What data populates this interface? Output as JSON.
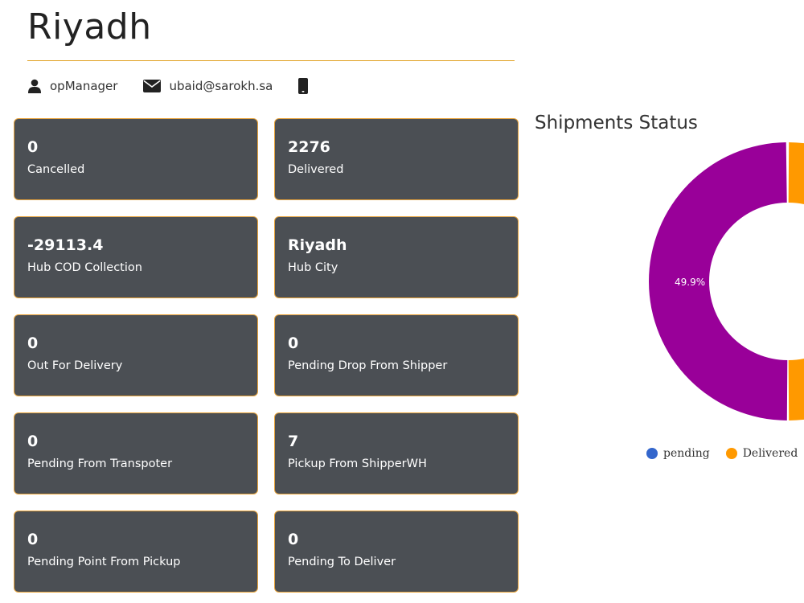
{
  "header": {
    "title": "Riyadh",
    "user": {
      "role": "opManager",
      "email": "ubaid@sarokh.sa",
      "phone": ""
    }
  },
  "cards": [
    {
      "value": "0",
      "label": "Cancelled"
    },
    {
      "value": "2276",
      "label": "Delivered"
    },
    {
      "value": "-29113.4",
      "label": "Hub COD Collection"
    },
    {
      "value": "Riyadh",
      "label": "Hub City"
    },
    {
      "value": "0",
      "label": "Out For Delivery"
    },
    {
      "value": "0",
      "label": "Pending Drop From Shipper"
    },
    {
      "value": "0",
      "label": "Pending From Transpoter"
    },
    {
      "value": "7",
      "label": "Pickup From ShipperWH"
    },
    {
      "value": "0",
      "label": "Pending Point From Pickup"
    },
    {
      "value": "0",
      "label": "Pending To Deliver"
    }
  ],
  "chart": {
    "title": "Shipments Status",
    "slice_label": "49.9%",
    "legend": [
      {
        "name": "pending",
        "color": "#3366cc"
      },
      {
        "name": "Delivered",
        "color": "#ff9900"
      }
    ],
    "slice_color": "#990099"
  },
  "chart_data": {
    "type": "pie",
    "title": "Shipments Status",
    "labels": [
      "pending",
      "Delivered"
    ],
    "visible_slice_percent": 49.9,
    "legend_position": "bottom"
  }
}
